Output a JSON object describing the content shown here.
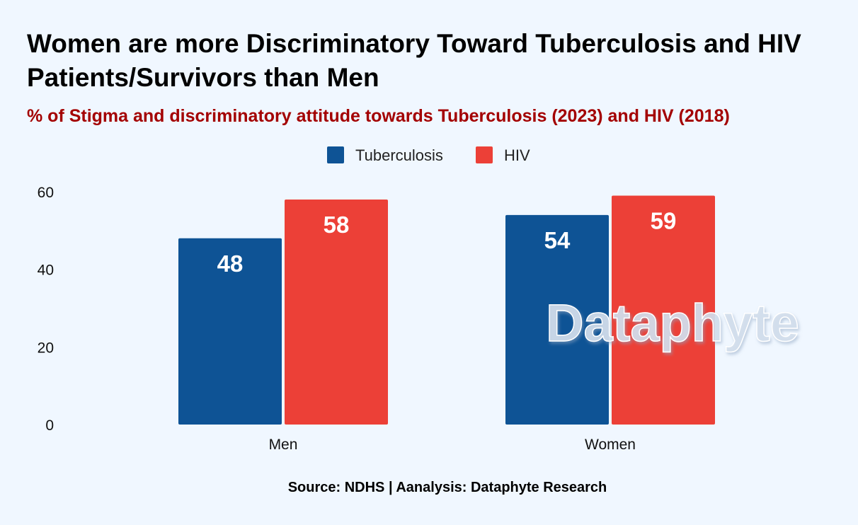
{
  "title": "Women are more Discriminatory Toward Tuberculosis and HIV Patients/Survivors than Men",
  "subtitle": "% of Stigma and discriminatory attitude towards Tuberculosis (2023) and HIV (2018)",
  "source": "Source: NDHS | Aanalysis: Dataphyte Research",
  "watermark": "Dataphyte",
  "colors": {
    "background": "#F0F7FF",
    "tuberculosis": "#0E5395",
    "hiv": "#EC4037",
    "subtitle": "#A30000",
    "watermark": "#D4DFEC"
  },
  "chart_data": {
    "type": "bar",
    "categories": [
      "Men",
      "Women"
    ],
    "series": [
      {
        "name": "Tuberculosis",
        "values": [
          48,
          54
        ],
        "color": "#0E5395"
      },
      {
        "name": "HIV",
        "values": [
          58,
          59
        ],
        "color": "#EC4037"
      }
    ],
    "ylim": [
      0,
      60
    ],
    "yticks": [
      0,
      20,
      40,
      60
    ],
    "data_labels": true,
    "legend_position": "top-center",
    "grid": false
  }
}
